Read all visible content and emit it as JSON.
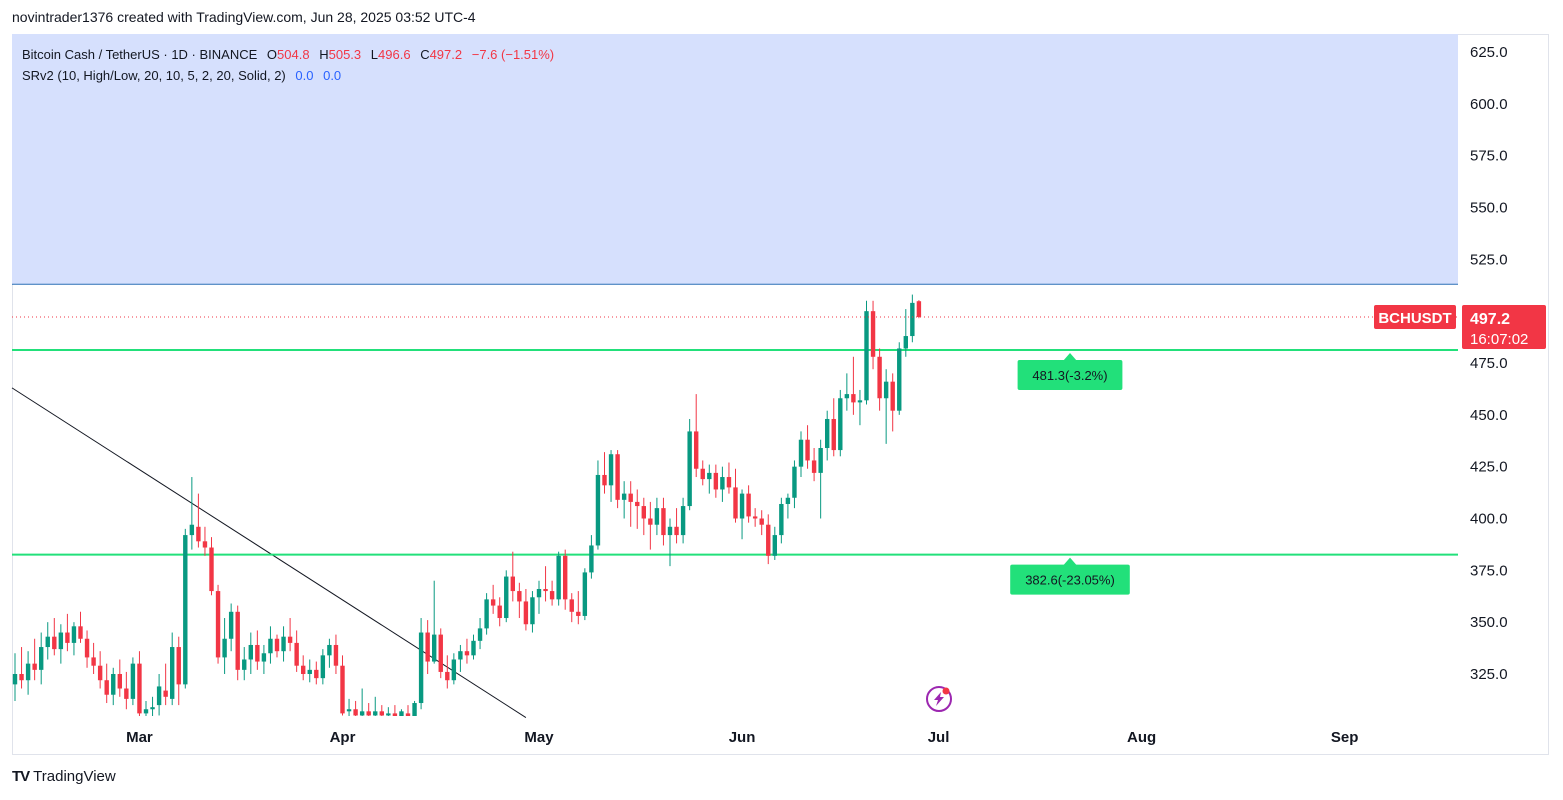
{
  "caption": "novintrader1376 created with TradingView.com, Jun 28, 2025 03:52 UTC-4",
  "legend": {
    "symbol": "Bitcoin Cash / TetherUS · 1D · BINANCE",
    "o_label": "O",
    "o_value": "504.8",
    "h_label": "H",
    "h_value": "505.3",
    "l_label": "L",
    "l_value": "496.6",
    "c_label": "C",
    "c_value": "497.2",
    "change": "−7.6 (−1.51%)",
    "indicator": "SRv2 (10, High/Low, 20, 10, 5, 2, 20, Solid, 2)",
    "indicator_v1": "0.0",
    "indicator_v2": "0.0"
  },
  "price_badge": {
    "symbol": "BCHUSDT",
    "price": "497.2",
    "countdown": "16:07:02"
  },
  "level_labels": {
    "upper": "481.3(-3.2%)",
    "lower": "382.6(-23.05%)"
  },
  "footer": {
    "brand": "TradingView"
  },
  "colors": {
    "up": "#089981",
    "down": "#f23645",
    "sr_line": "#22e07a",
    "resistance_zone": "#d6e0fd",
    "label_bg": "#22e07a"
  },
  "chart_data": {
    "type": "candlestick",
    "y_axis": {
      "ticks": [
        625.0,
        600.0,
        575.0,
        550.0,
        525.0,
        500.0,
        475.0,
        450.0,
        425.0,
        400.0,
        375.0,
        350.0,
        325.0
      ],
      "tick_labels": [
        "625.0",
        "600.0",
        "575.0",
        "550.0",
        "525.0",
        "500.0",
        "475.0",
        "450.0",
        "425.0",
        "400.0",
        "375.0",
        "350.0",
        "325.0"
      ],
      "ylim": [
        304,
        640
      ]
    },
    "x_axis": {
      "labels": [
        "Mar",
        "Apr",
        "May",
        "Jun",
        "Jul",
        "Aug",
        "Sep"
      ],
      "label_dates": [
        "2025-03-01",
        "2025-04-01",
        "2025-05-01",
        "2025-06-01",
        "2025-07-01",
        "2025-08-01",
        "2025-09-01"
      ],
      "start_date": "2025-02-10",
      "end_date": "2025-09-17"
    },
    "resistance_zone": {
      "from": 513,
      "to": 640
    },
    "support_levels": [
      481.3,
      382.6
    ],
    "trendline": {
      "from": [
        "2025-02-10",
        463
      ],
      "to": [
        "2025-04-29",
        304
      ]
    },
    "last_price": 497.2,
    "candles": [
      {
        "date": "2025-02-10",
        "o": 320,
        "h": 335,
        "l": 312,
        "c": 325
      },
      {
        "date": "2025-02-11",
        "o": 325,
        "h": 338,
        "l": 318,
        "c": 322
      },
      {
        "date": "2025-02-12",
        "o": 322,
        "h": 336,
        "l": 315,
        "c": 330
      },
      {
        "date": "2025-02-13",
        "o": 330,
        "h": 342,
        "l": 322,
        "c": 327
      },
      {
        "date": "2025-02-14",
        "o": 327,
        "h": 345,
        "l": 320,
        "c": 338
      },
      {
        "date": "2025-02-15",
        "o": 338,
        "h": 350,
        "l": 332,
        "c": 343
      },
      {
        "date": "2025-02-16",
        "o": 343,
        "h": 352,
        "l": 334,
        "c": 337
      },
      {
        "date": "2025-02-17",
        "o": 337,
        "h": 349,
        "l": 330,
        "c": 345
      },
      {
        "date": "2025-02-18",
        "o": 345,
        "h": 354,
        "l": 336,
        "c": 340
      },
      {
        "date": "2025-02-19",
        "o": 340,
        "h": 350,
        "l": 334,
        "c": 348
      },
      {
        "date": "2025-02-20",
        "o": 348,
        "h": 355,
        "l": 340,
        "c": 342
      },
      {
        "date": "2025-02-21",
        "o": 342,
        "h": 346,
        "l": 328,
        "c": 333
      },
      {
        "date": "2025-02-22",
        "o": 333,
        "h": 340,
        "l": 325,
        "c": 329
      },
      {
        "date": "2025-02-23",
        "o": 329,
        "h": 336,
        "l": 318,
        "c": 322
      },
      {
        "date": "2025-02-24",
        "o": 322,
        "h": 330,
        "l": 311,
        "c": 315
      },
      {
        "date": "2025-02-25",
        "o": 315,
        "h": 328,
        "l": 310,
        "c": 325
      },
      {
        "date": "2025-02-26",
        "o": 325,
        "h": 332,
        "l": 314,
        "c": 318
      },
      {
        "date": "2025-02-27",
        "o": 318,
        "h": 326,
        "l": 308,
        "c": 313
      },
      {
        "date": "2025-02-28",
        "o": 313,
        "h": 333,
        "l": 310,
        "c": 330
      },
      {
        "date": "2025-03-01",
        "o": 330,
        "h": 336,
        "l": 303,
        "c": 306
      },
      {
        "date": "2025-03-02",
        "o": 306,
        "h": 312,
        "l": 304,
        "c": 308
      },
      {
        "date": "2025-03-03",
        "o": 308,
        "h": 314,
        "l": 304,
        "c": 309
      },
      {
        "date": "2025-03-04",
        "o": 310,
        "h": 325,
        "l": 305,
        "c": 319
      },
      {
        "date": "2025-03-05",
        "o": 317,
        "h": 330,
        "l": 310,
        "c": 314
      },
      {
        "date": "2025-03-06",
        "o": 313,
        "h": 345,
        "l": 310,
        "c": 338
      },
      {
        "date": "2025-03-07",
        "o": 338,
        "h": 343,
        "l": 310,
        "c": 320
      },
      {
        "date": "2025-03-08",
        "o": 320,
        "h": 395,
        "l": 318,
        "c": 392
      },
      {
        "date": "2025-03-09",
        "o": 392,
        "h": 420,
        "l": 385,
        "c": 397
      },
      {
        "date": "2025-03-10",
        "o": 396,
        "h": 412,
        "l": 386,
        "c": 389
      },
      {
        "date": "2025-03-11",
        "o": 389,
        "h": 396,
        "l": 382,
        "c": 386
      },
      {
        "date": "2025-03-12",
        "o": 386,
        "h": 391,
        "l": 363,
        "c": 365
      },
      {
        "date": "2025-03-13",
        "o": 365,
        "h": 368,
        "l": 330,
        "c": 333
      },
      {
        "date": "2025-03-14",
        "o": 333,
        "h": 352,
        "l": 325,
        "c": 342
      },
      {
        "date": "2025-03-15",
        "o": 342,
        "h": 359,
        "l": 336,
        "c": 355
      },
      {
        "date": "2025-03-16",
        "o": 355,
        "h": 358,
        "l": 322,
        "c": 327
      },
      {
        "date": "2025-03-17",
        "o": 327,
        "h": 338,
        "l": 322,
        "c": 332
      },
      {
        "date": "2025-03-18",
        "o": 332,
        "h": 345,
        "l": 325,
        "c": 339
      },
      {
        "date": "2025-03-19",
        "o": 339,
        "h": 346,
        "l": 327,
        "c": 331
      },
      {
        "date": "2025-03-20",
        "o": 331,
        "h": 339,
        "l": 325,
        "c": 335
      },
      {
        "date": "2025-03-21",
        "o": 335,
        "h": 348,
        "l": 330,
        "c": 342
      },
      {
        "date": "2025-03-22",
        "o": 342,
        "h": 344,
        "l": 333,
        "c": 336
      },
      {
        "date": "2025-03-23",
        "o": 336,
        "h": 348,
        "l": 331,
        "c": 343
      },
      {
        "date": "2025-03-24",
        "o": 343,
        "h": 352,
        "l": 336,
        "c": 340
      },
      {
        "date": "2025-03-25",
        "o": 340,
        "h": 346,
        "l": 326,
        "c": 329
      },
      {
        "date": "2025-03-26",
        "o": 329,
        "h": 334,
        "l": 322,
        "c": 325
      },
      {
        "date": "2025-03-27",
        "o": 325,
        "h": 332,
        "l": 321,
        "c": 327
      },
      {
        "date": "2025-03-28",
        "o": 327,
        "h": 331,
        "l": 320,
        "c": 323
      },
      {
        "date": "2025-03-29",
        "o": 323,
        "h": 337,
        "l": 320,
        "c": 334
      },
      {
        "date": "2025-03-30",
        "o": 334,
        "h": 342,
        "l": 328,
        "c": 339
      },
      {
        "date": "2025-03-31",
        "o": 339,
        "h": 344,
        "l": 325,
        "c": 329
      },
      {
        "date": "2025-04-01",
        "o": 329,
        "h": 334,
        "l": 305,
        "c": 306
      },
      {
        "date": "2025-04-02",
        "o": 307,
        "h": 313,
        "l": 303,
        "c": 308
      },
      {
        "date": "2025-04-03",
        "o": 308,
        "h": 312,
        "l": 304,
        "c": 305
      },
      {
        "date": "2025-04-04",
        "o": 305,
        "h": 318,
        "l": 303,
        "c": 307
      },
      {
        "date": "2025-04-05",
        "o": 307,
        "h": 311,
        "l": 303,
        "c": 305
      },
      {
        "date": "2025-04-06",
        "o": 305,
        "h": 314,
        "l": 303,
        "c": 307
      },
      {
        "date": "2025-04-07",
        "o": 307,
        "h": 310,
        "l": 303,
        "c": 305
      },
      {
        "date": "2025-04-08",
        "o": 305,
        "h": 309,
        "l": 303,
        "c": 306
      },
      {
        "date": "2025-04-09",
        "o": 306,
        "h": 310,
        "l": 303,
        "c": 304
      },
      {
        "date": "2025-04-10",
        "o": 304,
        "h": 308,
        "l": 303,
        "c": 307
      },
      {
        "date": "2025-04-11",
        "o": 306,
        "h": 310,
        "l": 303,
        "c": 304
      },
      {
        "date": "2025-04-12",
        "o": 304,
        "h": 312,
        "l": 303,
        "c": 311
      },
      {
        "date": "2025-04-13",
        "o": 311,
        "h": 352,
        "l": 308,
        "c": 345
      },
      {
        "date": "2025-04-14",
        "o": 345,
        "h": 351,
        "l": 325,
        "c": 331
      },
      {
        "date": "2025-04-15",
        "o": 331,
        "h": 370,
        "l": 330,
        "c": 344
      },
      {
        "date": "2025-04-16",
        "o": 344,
        "h": 347,
        "l": 323,
        "c": 326
      },
      {
        "date": "2025-04-17",
        "o": 326,
        "h": 334,
        "l": 318,
        "c": 322
      },
      {
        "date": "2025-04-18",
        "o": 322,
        "h": 335,
        "l": 320,
        "c": 332
      },
      {
        "date": "2025-04-19",
        "o": 332,
        "h": 339,
        "l": 326,
        "c": 336
      },
      {
        "date": "2025-04-20",
        "o": 336,
        "h": 342,
        "l": 330,
        "c": 334
      },
      {
        "date": "2025-04-21",
        "o": 334,
        "h": 344,
        "l": 332,
        "c": 341
      },
      {
        "date": "2025-04-22",
        "o": 341,
        "h": 352,
        "l": 337,
        "c": 347
      },
      {
        "date": "2025-04-23",
        "o": 347,
        "h": 364,
        "l": 344,
        "c": 361
      },
      {
        "date": "2025-04-24",
        "o": 361,
        "h": 368,
        "l": 354,
        "c": 358
      },
      {
        "date": "2025-04-25",
        "o": 358,
        "h": 362,
        "l": 348,
        "c": 352
      },
      {
        "date": "2025-04-26",
        "o": 352,
        "h": 375,
        "l": 350,
        "c": 372
      },
      {
        "date": "2025-04-27",
        "o": 372,
        "h": 384,
        "l": 360,
        "c": 365
      },
      {
        "date": "2025-04-28",
        "o": 365,
        "h": 369,
        "l": 352,
        "c": 360
      },
      {
        "date": "2025-04-29",
        "o": 360,
        "h": 366,
        "l": 346,
        "c": 349
      },
      {
        "date": "2025-04-30",
        "o": 349,
        "h": 365,
        "l": 345,
        "c": 362
      },
      {
        "date": "2025-05-01",
        "o": 362,
        "h": 370,
        "l": 354,
        "c": 366
      },
      {
        "date": "2025-05-02",
        "o": 366,
        "h": 377,
        "l": 360,
        "c": 365
      },
      {
        "date": "2025-05-03",
        "o": 365,
        "h": 370,
        "l": 358,
        "c": 361
      },
      {
        "date": "2025-05-04",
        "o": 361,
        "h": 384,
        "l": 358,
        "c": 382
      },
      {
        "date": "2025-05-05",
        "o": 382,
        "h": 385,
        "l": 356,
        "c": 361
      },
      {
        "date": "2025-05-06",
        "o": 361,
        "h": 364,
        "l": 350,
        "c": 355
      },
      {
        "date": "2025-05-07",
        "o": 355,
        "h": 365,
        "l": 349,
        "c": 353
      },
      {
        "date": "2025-05-08",
        "o": 353,
        "h": 376,
        "l": 351,
        "c": 374
      },
      {
        "date": "2025-05-09",
        "o": 374,
        "h": 392,
        "l": 371,
        "c": 387
      },
      {
        "date": "2025-05-10",
        "o": 387,
        "h": 428,
        "l": 385,
        "c": 421
      },
      {
        "date": "2025-05-11",
        "o": 421,
        "h": 432,
        "l": 412,
        "c": 416
      },
      {
        "date": "2025-05-12",
        "o": 416,
        "h": 433,
        "l": 408,
        "c": 431
      },
      {
        "date": "2025-05-13",
        "o": 431,
        "h": 433,
        "l": 405,
        "c": 409
      },
      {
        "date": "2025-05-14",
        "o": 409,
        "h": 418,
        "l": 400,
        "c": 412
      },
      {
        "date": "2025-05-15",
        "o": 412,
        "h": 418,
        "l": 396,
        "c": 408
      },
      {
        "date": "2025-05-16",
        "o": 408,
        "h": 414,
        "l": 395,
        "c": 406
      },
      {
        "date": "2025-05-17",
        "o": 406,
        "h": 410,
        "l": 392,
        "c": 400
      },
      {
        "date": "2025-05-18",
        "o": 400,
        "h": 408,
        "l": 385,
        "c": 397
      },
      {
        "date": "2025-05-19",
        "o": 397,
        "h": 410,
        "l": 392,
        "c": 405
      },
      {
        "date": "2025-05-20",
        "o": 405,
        "h": 410,
        "l": 387,
        "c": 392
      },
      {
        "date": "2025-05-21",
        "o": 392,
        "h": 400,
        "l": 377,
        "c": 396
      },
      {
        "date": "2025-05-22",
        "o": 396,
        "h": 405,
        "l": 388,
        "c": 392
      },
      {
        "date": "2025-05-23",
        "o": 392,
        "h": 410,
        "l": 388,
        "c": 406
      },
      {
        "date": "2025-05-24",
        "o": 406,
        "h": 448,
        "l": 404,
        "c": 442
      },
      {
        "date": "2025-05-25",
        "o": 442,
        "h": 460,
        "l": 420,
        "c": 424
      },
      {
        "date": "2025-05-26",
        "o": 424,
        "h": 428,
        "l": 416,
        "c": 419
      },
      {
        "date": "2025-05-27",
        "o": 419,
        "h": 426,
        "l": 412,
        "c": 422
      },
      {
        "date": "2025-05-28",
        "o": 422,
        "h": 426,
        "l": 410,
        "c": 414
      },
      {
        "date": "2025-05-29",
        "o": 414,
        "h": 425,
        "l": 408,
        "c": 420
      },
      {
        "date": "2025-05-30",
        "o": 420,
        "h": 427,
        "l": 412,
        "c": 415
      },
      {
        "date": "2025-05-31",
        "o": 415,
        "h": 424,
        "l": 398,
        "c": 400
      },
      {
        "date": "2025-06-01",
        "o": 400,
        "h": 414,
        "l": 390,
        "c": 412
      },
      {
        "date": "2025-06-02",
        "o": 412,
        "h": 416,
        "l": 398,
        "c": 401
      },
      {
        "date": "2025-06-03",
        "o": 401,
        "h": 405,
        "l": 396,
        "c": 400
      },
      {
        "date": "2025-06-04",
        "o": 400,
        "h": 404,
        "l": 392,
        "c": 397
      },
      {
        "date": "2025-06-05",
        "o": 397,
        "h": 402,
        "l": 378,
        "c": 382
      },
      {
        "date": "2025-06-06",
        "o": 382,
        "h": 396,
        "l": 380,
        "c": 392
      },
      {
        "date": "2025-06-07",
        "o": 392,
        "h": 410,
        "l": 388,
        "c": 407
      },
      {
        "date": "2025-06-08",
        "o": 407,
        "h": 412,
        "l": 400,
        "c": 410
      },
      {
        "date": "2025-06-09",
        "o": 410,
        "h": 428,
        "l": 405,
        "c": 425
      },
      {
        "date": "2025-06-10",
        "o": 425,
        "h": 442,
        "l": 420,
        "c": 438
      },
      {
        "date": "2025-06-11",
        "o": 438,
        "h": 445,
        "l": 424,
        "c": 428
      },
      {
        "date": "2025-06-12",
        "o": 428,
        "h": 434,
        "l": 418,
        "c": 422
      },
      {
        "date": "2025-06-13",
        "o": 422,
        "h": 438,
        "l": 400,
        "c": 434
      },
      {
        "date": "2025-06-14",
        "o": 434,
        "h": 452,
        "l": 428,
        "c": 448
      },
      {
        "date": "2025-06-15",
        "o": 448,
        "h": 458,
        "l": 430,
        "c": 433
      },
      {
        "date": "2025-06-16",
        "o": 433,
        "h": 462,
        "l": 430,
        "c": 458
      },
      {
        "date": "2025-06-17",
        "o": 458,
        "h": 470,
        "l": 452,
        "c": 460
      },
      {
        "date": "2025-06-18",
        "o": 460,
        "h": 478,
        "l": 450,
        "c": 456
      },
      {
        "date": "2025-06-19",
        "o": 456,
        "h": 462,
        "l": 445,
        "c": 457
      },
      {
        "date": "2025-06-20",
        "o": 457,
        "h": 505,
        "l": 455,
        "c": 500
      },
      {
        "date": "2025-06-21",
        "o": 500,
        "h": 505,
        "l": 472,
        "c": 478
      },
      {
        "date": "2025-06-22",
        "o": 478,
        "h": 482,
        "l": 452,
        "c": 458
      },
      {
        "date": "2025-06-23",
        "o": 458,
        "h": 472,
        "l": 436,
        "c": 466
      },
      {
        "date": "2025-06-24",
        "o": 466,
        "h": 470,
        "l": 442,
        "c": 452
      },
      {
        "date": "2025-06-25",
        "o": 452,
        "h": 485,
        "l": 450,
        "c": 482
      },
      {
        "date": "2025-06-26",
        "o": 482,
        "h": 501,
        "l": 478,
        "c": 488
      },
      {
        "date": "2025-06-27",
        "o": 488,
        "h": 508,
        "l": 485,
        "c": 504
      },
      {
        "date": "2025-06-28",
        "o": 504.8,
        "h": 505.3,
        "l": 496.6,
        "c": 497.2
      }
    ]
  }
}
